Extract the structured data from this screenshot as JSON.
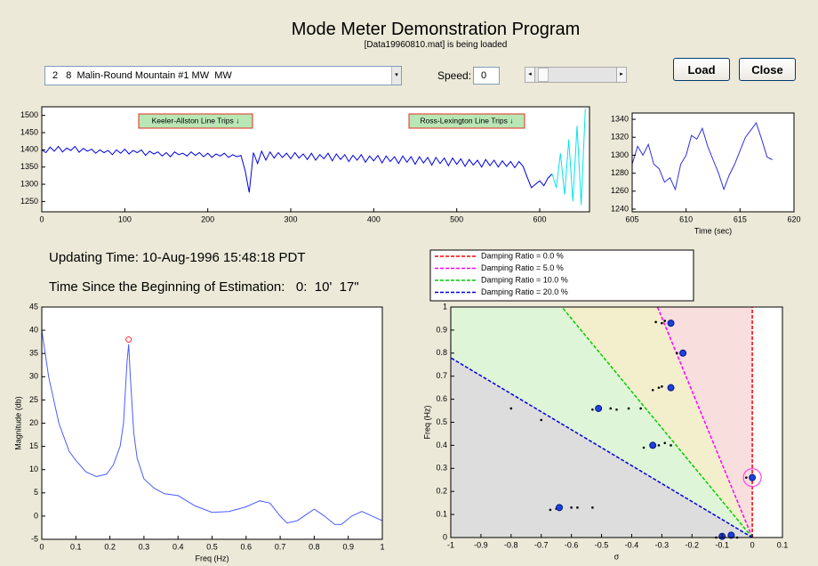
{
  "header": {
    "title": "Mode Meter  Demonstration Program",
    "subtitle": "[Data19960810.mat] is being loaded"
  },
  "controls": {
    "dropdown": "2   8  Malin-Round Mountain #1 MW  MW",
    "speed_label": "Speed:",
    "speed_value": "0",
    "load": "Load",
    "close": "Close"
  },
  "status": {
    "updating": "Updating Time: 10-Aug-1996 15:48:18 PDT",
    "elapsed": "Time Since the Beginning of Estimation:   0:  10'  17\""
  },
  "chart_data": [
    {
      "type": "line",
      "xlim": [
        0,
        660
      ],
      "xticks": [
        0,
        100,
        200,
        300,
        400,
        500,
        600
      ],
      "ylim": [
        1220,
        1525
      ],
      "yticks": [
        1250,
        1300,
        1350,
        1400,
        1450,
        1500
      ],
      "annotations": [
        "Keeler-Allston Line Trips ↓",
        "Ross-Lexington Line Trips ↓"
      ],
      "series": [
        {
          "color": "#0000e0",
          "x": [
            0,
            5,
            10,
            15,
            20,
            25,
            30,
            35,
            40,
            45,
            50,
            55,
            60,
            65,
            70,
            75,
            80,
            85,
            90,
            95,
            100,
            105,
            110,
            115,
            120,
            125,
            130,
            135,
            140,
            145,
            150,
            155,
            160,
            165,
            170,
            175,
            180,
            185,
            190,
            195,
            200,
            205,
            210,
            215,
            220,
            225,
            230,
            235,
            240,
            245,
            250,
            255,
            260,
            265,
            270,
            275,
            280,
            285,
            290,
            295,
            300,
            305,
            310,
            315,
            320,
            325,
            330,
            335,
            340,
            345,
            350,
            355,
            360,
            365,
            370,
            375,
            380,
            385,
            390,
            395,
            400,
            405,
            410,
            415,
            420,
            425,
            430,
            435,
            440,
            445,
            450,
            455,
            460,
            465,
            470,
            475,
            480,
            485,
            490,
            495,
            500,
            505,
            510,
            515,
            520,
            525,
            530,
            535,
            540,
            545,
            550,
            555,
            560,
            565,
            570,
            575,
            580,
            585,
            590,
            595,
            600,
            605,
            610,
            615
          ],
          "values": [
            1400,
            1392,
            1408,
            1396,
            1410,
            1394,
            1405,
            1398,
            1410,
            1393,
            1404,
            1396,
            1402,
            1390,
            1400,
            1392,
            1398,
            1386,
            1400,
            1390,
            1402,
            1388,
            1398,
            1392,
            1400,
            1384,
            1396,
            1388,
            1394,
            1382,
            1392,
            1380,
            1394,
            1386,
            1390,
            1382,
            1394,
            1384,
            1392,
            1380,
            1390,
            1378,
            1388,
            1382,
            1390,
            1378,
            1386,
            1380,
            1384,
            1340,
            1276,
            1392,
            1360,
            1396,
            1370,
            1394,
            1376,
            1392,
            1378,
            1390,
            1374,
            1392,
            1376,
            1388,
            1372,
            1390,
            1370,
            1386,
            1374,
            1390,
            1368,
            1388,
            1372,
            1386,
            1366,
            1384,
            1370,
            1386,
            1364,
            1382,
            1368,
            1384,
            1362,
            1382,
            1366,
            1380,
            1360,
            1382,
            1364,
            1380,
            1358,
            1380,
            1362,
            1378,
            1356,
            1378,
            1360,
            1376,
            1354,
            1376,
            1358,
            1374,
            1352,
            1372,
            1356,
            1370,
            1350,
            1372,
            1354,
            1370,
            1350,
            1368,
            1352,
            1366,
            1348,
            1366,
            1352,
            1320,
            1290,
            1300,
            1310,
            1296,
            1318,
            1330
          ]
        },
        {
          "color": "#00e5ee",
          "x": [
            615,
            620,
            625,
            630,
            635,
            640,
            645,
            650,
            655
          ],
          "values": [
            1330,
            1290,
            1390,
            1270,
            1430,
            1250,
            1470,
            1240,
            1520
          ]
        }
      ]
    },
    {
      "type": "line",
      "xlabel": "Time (sec)",
      "xlim": [
        605,
        620
      ],
      "xticks": [
        605,
        610,
        615,
        620
      ],
      "ylim": [
        1237,
        1347
      ],
      "yticks": [
        1240,
        1260,
        1280,
        1300,
        1320,
        1340
      ],
      "series": [
        {
          "color": "#3030e0",
          "x": [
            605,
            605.5,
            606,
            606.5,
            607,
            607.5,
            608,
            608.5,
            609,
            609.5,
            610,
            610.5,
            611,
            611.5,
            612,
            612.5,
            613,
            613.5,
            614,
            614.5,
            615,
            615.5,
            616,
            616.5,
            617,
            617.5,
            618
          ],
          "values": [
            1290,
            1310,
            1300,
            1312,
            1290,
            1285,
            1270,
            1275,
            1262,
            1290,
            1300,
            1322,
            1318,
            1330,
            1310,
            1295,
            1280,
            1262,
            1278,
            1290,
            1305,
            1320,
            1328,
            1336,
            1318,
            1298,
            1295
          ]
        }
      ]
    },
    {
      "type": "line",
      "xlabel": "Freq (Hz)",
      "ylabel": "Magnitude (db)",
      "xlim": [
        0,
        1
      ],
      "xticks": [
        0,
        0.1,
        0.2,
        0.3,
        0.4,
        0.5,
        0.6,
        0.7,
        0.8,
        0.9,
        1
      ],
      "ylim": [
        -5,
        45
      ],
      "yticks": [
        -5,
        0,
        5,
        10,
        15,
        20,
        25,
        30,
        35,
        40,
        45
      ],
      "series": [
        {
          "color": "#4a5cff",
          "x": [
            0,
            0.02,
            0.05,
            0.08,
            0.1,
            0.13,
            0.16,
            0.19,
            0.21,
            0.23,
            0.24,
            0.25,
            0.255,
            0.26,
            0.27,
            0.28,
            0.3,
            0.33,
            0.36,
            0.4,
            0.45,
            0.5,
            0.55,
            0.6,
            0.64,
            0.67,
            0.7,
            0.72,
            0.75,
            0.78,
            0.8,
            0.83,
            0.86,
            0.88,
            0.91,
            0.94,
            0.97,
            1
          ],
          "values": [
            40,
            30,
            20,
            14,
            12,
            9.5,
            8.5,
            9,
            11,
            15,
            20,
            33,
            37,
            30,
            18,
            12.5,
            8,
            6,
            4.8,
            4.4,
            2.2,
            0.8,
            1,
            2,
            3.3,
            2.8,
            0,
            -1.5,
            -1,
            0.5,
            1.5,
            0,
            -1.8,
            -1.8,
            0,
            1,
            0,
            -1
          ]
        },
        {
          "color": "#ff3333",
          "marker": "ring",
          "x": [
            0.255
          ],
          "values": [
            38
          ]
        }
      ]
    },
    {
      "type": "scatter",
      "xlabel": "σ",
      "ylabel": "Freq (Hz)",
      "xlim": [
        -1,
        0.1
      ],
      "xticks": [
        -1,
        -0.9,
        -0.8,
        -0.7,
        -0.6,
        -0.5,
        -0.4,
        -0.3,
        -0.2,
        -0.1,
        0,
        0.1
      ],
      "ylim": [
        0,
        1
      ],
      "yticks": [
        0,
        0.1,
        0.2,
        0.3,
        0.4,
        0.5,
        0.6,
        0.7,
        0.8,
        0.9,
        1
      ],
      "damping": [
        {
          "name": "Damping Ratio = 0.0 %",
          "ratio": 0,
          "color": "#ff0000",
          "fill": "#f9dede"
        },
        {
          "name": "Damping Ratio = 5.0 %",
          "ratio": 5,
          "color": "#ff00ff",
          "fill": "#f3efcc"
        },
        {
          "name": "Damping Ratio = 10.0 %",
          "ratio": 10,
          "color": "#00cc00",
          "fill": "#dff5d8"
        },
        {
          "name": "Damping Ratio = 20.0 %",
          "ratio": 20,
          "color": "#0000dd",
          "fill": "#dddddd"
        }
      ],
      "series": [
        {
          "color": "#000000",
          "marker": "dot",
          "x": [
            -0.3,
            -0.32,
            -0.29,
            -0.25,
            -0.31,
            -0.33,
            -0.3,
            -0.53,
            -0.47,
            -0.45,
            -0.41,
            -0.37,
            -0.36,
            -0.31,
            -0.29,
            -0.27,
            -0.67,
            -0.65,
            -0.6,
            -0.58,
            -0.53,
            -0.7,
            -0.8,
            -0.12,
            -0.05,
            -0.02
          ],
          "values": [
            0.93,
            0.935,
            0.94,
            0.8,
            0.65,
            0.64,
            0.655,
            0.555,
            0.56,
            0.555,
            0.56,
            0.56,
            0.39,
            0.4,
            0.41,
            0.4,
            0.12,
            0.125,
            0.13,
            0.13,
            0.13,
            0.51,
            0.56,
            0,
            0,
            0.26
          ]
        },
        {
          "color": "#1f3fdf",
          "marker": "circle",
          "x": [
            -0.27,
            -0.23,
            -0.27,
            -0.51,
            -0.33,
            -0.64,
            -0.1,
            -0.07,
            0
          ],
          "values": [
            0.93,
            0.8,
            0.65,
            0.56,
            0.4,
            0.13,
            0.005,
            0.01,
            0.26
          ]
        },
        {
          "color": "#ff44dd",
          "marker": "ring-large",
          "x": [
            0
          ],
          "values": [
            0.26
          ]
        }
      ]
    }
  ]
}
